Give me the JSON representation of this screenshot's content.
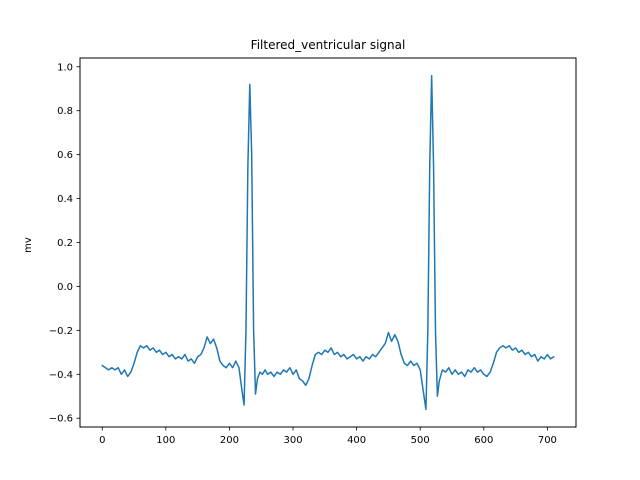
{
  "chart_data": {
    "type": "line",
    "title": "Filtered_ventricular signal",
    "xlabel": "",
    "ylabel": "mv",
    "xlim": [
      -35,
      745
    ],
    "ylim": [
      -0.64,
      1.04
    ],
    "x_ticks": [
      0,
      100,
      200,
      300,
      400,
      500,
      600,
      700
    ],
    "y_ticks": [
      -0.6,
      -0.4,
      -0.2,
      0.0,
      0.2,
      0.4,
      0.6,
      0.8,
      1.0
    ],
    "x_tick_labels": [
      "0",
      "100",
      "200",
      "300",
      "400",
      "500",
      "600",
      "700"
    ],
    "y_tick_labels": [
      "−0.6",
      "−0.4",
      "−0.2",
      "0.0",
      "0.2",
      "0.4",
      "0.6",
      "0.8",
      "1.0"
    ],
    "grid": false,
    "legend": "none",
    "line_color": "#1f77b4",
    "series": [
      {
        "points": [
          [
            0,
            -0.36
          ],
          [
            5,
            -0.37
          ],
          [
            10,
            -0.38
          ],
          [
            15,
            -0.37
          ],
          [
            20,
            -0.38
          ],
          [
            25,
            -0.37
          ],
          [
            30,
            -0.4
          ],
          [
            35,
            -0.38
          ],
          [
            40,
            -0.41
          ],
          [
            45,
            -0.39
          ],
          [
            50,
            -0.35
          ],
          [
            55,
            -0.3
          ],
          [
            60,
            -0.27
          ],
          [
            65,
            -0.28
          ],
          [
            70,
            -0.27
          ],
          [
            75,
            -0.29
          ],
          [
            80,
            -0.28
          ],
          [
            85,
            -0.3
          ],
          [
            90,
            -0.29
          ],
          [
            95,
            -0.31
          ],
          [
            100,
            -0.3
          ],
          [
            105,
            -0.32
          ],
          [
            110,
            -0.31
          ],
          [
            115,
            -0.33
          ],
          [
            120,
            -0.32
          ],
          [
            125,
            -0.33
          ],
          [
            130,
            -0.31
          ],
          [
            135,
            -0.34
          ],
          [
            140,
            -0.33
          ],
          [
            145,
            -0.35
          ],
          [
            150,
            -0.32
          ],
          [
            155,
            -0.31
          ],
          [
            160,
            -0.28
          ],
          [
            165,
            -0.23
          ],
          [
            170,
            -0.26
          ],
          [
            175,
            -0.24
          ],
          [
            180,
            -0.28
          ],
          [
            185,
            -0.34
          ],
          [
            190,
            -0.36
          ],
          [
            195,
            -0.37
          ],
          [
            200,
            -0.35
          ],
          [
            205,
            -0.37
          ],
          [
            210,
            -0.34
          ],
          [
            215,
            -0.37
          ],
          [
            220,
            -0.48
          ],
          [
            223,
            -0.54
          ],
          [
            226,
            -0.2
          ],
          [
            229,
            0.55
          ],
          [
            232,
            0.92
          ],
          [
            235,
            0.6
          ],
          [
            238,
            -0.2
          ],
          [
            241,
            -0.49
          ],
          [
            244,
            -0.42
          ],
          [
            248,
            -0.39
          ],
          [
            252,
            -0.4
          ],
          [
            256,
            -0.38
          ],
          [
            260,
            -0.4
          ],
          [
            265,
            -0.39
          ],
          [
            270,
            -0.41
          ],
          [
            275,
            -0.39
          ],
          [
            280,
            -0.4
          ],
          [
            285,
            -0.38
          ],
          [
            290,
            -0.39
          ],
          [
            295,
            -0.37
          ],
          [
            300,
            -0.4
          ],
          [
            305,
            -0.38
          ],
          [
            310,
            -0.42
          ],
          [
            315,
            -0.43
          ],
          [
            320,
            -0.45
          ],
          [
            325,
            -0.42
          ],
          [
            330,
            -0.36
          ],
          [
            335,
            -0.31
          ],
          [
            340,
            -0.3
          ],
          [
            345,
            -0.31
          ],
          [
            350,
            -0.29
          ],
          [
            355,
            -0.3
          ],
          [
            360,
            -0.28
          ],
          [
            365,
            -0.31
          ],
          [
            370,
            -0.3
          ],
          [
            375,
            -0.32
          ],
          [
            380,
            -0.31
          ],
          [
            385,
            -0.33
          ],
          [
            390,
            -0.32
          ],
          [
            395,
            -0.31
          ],
          [
            400,
            -0.33
          ],
          [
            405,
            -0.32
          ],
          [
            410,
            -0.34
          ],
          [
            415,
            -0.32
          ],
          [
            420,
            -0.33
          ],
          [
            425,
            -0.31
          ],
          [
            430,
            -0.32
          ],
          [
            435,
            -0.3
          ],
          [
            440,
            -0.28
          ],
          [
            445,
            -0.26
          ],
          [
            450,
            -0.21
          ],
          [
            455,
            -0.25
          ],
          [
            460,
            -0.22
          ],
          [
            465,
            -0.25
          ],
          [
            470,
            -0.31
          ],
          [
            475,
            -0.35
          ],
          [
            480,
            -0.36
          ],
          [
            485,
            -0.34
          ],
          [
            490,
            -0.36
          ],
          [
            495,
            -0.35
          ],
          [
            500,
            -0.38
          ],
          [
            505,
            -0.48
          ],
          [
            509,
            -0.56
          ],
          [
            512,
            -0.2
          ],
          [
            515,
            0.55
          ],
          [
            518,
            0.96
          ],
          [
            521,
            0.55
          ],
          [
            524,
            -0.2
          ],
          [
            527,
            -0.5
          ],
          [
            530,
            -0.43
          ],
          [
            535,
            -0.38
          ],
          [
            540,
            -0.39
          ],
          [
            545,
            -0.37
          ],
          [
            550,
            -0.4
          ],
          [
            555,
            -0.38
          ],
          [
            560,
            -0.4
          ],
          [
            565,
            -0.39
          ],
          [
            570,
            -0.41
          ],
          [
            575,
            -0.38
          ],
          [
            580,
            -0.39
          ],
          [
            585,
            -0.37
          ],
          [
            590,
            -0.39
          ],
          [
            595,
            -0.38
          ],
          [
            600,
            -0.4
          ],
          [
            605,
            -0.41
          ],
          [
            610,
            -0.39
          ],
          [
            615,
            -0.35
          ],
          [
            620,
            -0.3
          ],
          [
            625,
            -0.28
          ],
          [
            630,
            -0.27
          ],
          [
            635,
            -0.28
          ],
          [
            640,
            -0.27
          ],
          [
            645,
            -0.29
          ],
          [
            650,
            -0.28
          ],
          [
            655,
            -0.3
          ],
          [
            660,
            -0.29
          ],
          [
            665,
            -0.31
          ],
          [
            670,
            -0.3
          ],
          [
            675,
            -0.32
          ],
          [
            680,
            -0.31
          ],
          [
            685,
            -0.34
          ],
          [
            690,
            -0.32
          ],
          [
            695,
            -0.33
          ],
          [
            700,
            -0.31
          ],
          [
            705,
            -0.33
          ],
          [
            710,
            -0.32
          ]
        ]
      }
    ]
  }
}
